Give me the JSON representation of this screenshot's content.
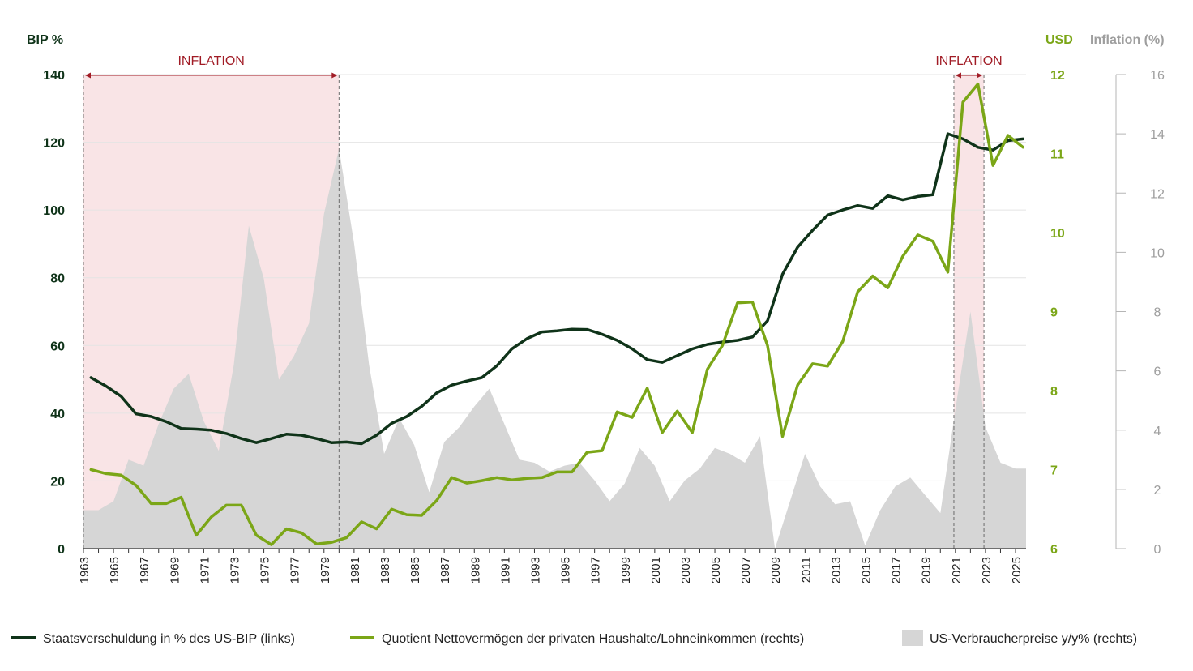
{
  "chart_data": {
    "type": "line",
    "title": "",
    "axes": {
      "left": {
        "label": "BIP %",
        "min": 0,
        "max": 140,
        "ticks": [
          0,
          20,
          40,
          60,
          80,
          100,
          120,
          140
        ],
        "color": "#0f3319"
      },
      "right_usd": {
        "label": "USD",
        "min": 6,
        "max": 12,
        "ticks": [
          6,
          7,
          8,
          9,
          10,
          11,
          12
        ],
        "color": "#7ba617"
      },
      "right_inflation": {
        "label": "Inflation (%)",
        "min": 0,
        "max": 16,
        "ticks": [
          0,
          2,
          4,
          6,
          8,
          10,
          12,
          14,
          16
        ],
        "color": "#9e9e9e"
      }
    },
    "x_tick_labels": [
      "1963",
      "1965",
      "1967",
      "1969",
      "1971",
      "1973",
      "1975",
      "1977",
      "1979",
      "1981",
      "1983",
      "1985",
      "1987",
      "1989",
      "1991",
      "1993",
      "1995",
      "1997",
      "1999",
      "2001",
      "2003",
      "2005",
      "2007",
      "2009",
      "2011",
      "2013",
      "2015",
      "2017",
      "2019",
      "2021",
      "2023",
      "2025"
    ],
    "x_range": [
      1963,
      2025.7
    ],
    "grid": true,
    "shaded_periods": [
      {
        "label": "INFLATION",
        "start": 1963,
        "end": 1980
      },
      {
        "label": "INFLATION",
        "start": 2020.9,
        "end": 2022.9
      }
    ],
    "series": [
      {
        "name": "Staatsverschuldung in % des US-BIP (links)",
        "axis": "left",
        "color": "#0f3319",
        "x": [
          1963.5,
          1964.5,
          1965.5,
          1966.5,
          1967.5,
          1968.5,
          1969.5,
          1970.5,
          1971.5,
          1972.5,
          1973.5,
          1974.5,
          1975.5,
          1976.5,
          1977.5,
          1978.5,
          1979.5,
          1980.5,
          1981.5,
          1982.5,
          1983.5,
          1984.5,
          1985.5,
          1986.5,
          1987.5,
          1988.5,
          1989.5,
          1990.5,
          1991.5,
          1992.5,
          1993.5,
          1994.5,
          1995.5,
          1996.5,
          1997.5,
          1998.5,
          1999.5,
          2000.5,
          2001.5,
          2002.5,
          2003.5,
          2004.5,
          2005.5,
          2006.5,
          2007.5,
          2008.5,
          2009.5,
          2010.5,
          2011.5,
          2012.5,
          2013.5,
          2014.5,
          2015.5,
          2016.5,
          2017.5,
          2018.5,
          2019.5,
          2020.5,
          2021.5,
          2022.5,
          2023.5,
          2024.5,
          2025.5
        ],
        "values": [
          50.5,
          48,
          45,
          39.8,
          39,
          37.5,
          35.5,
          35.3,
          35,
          34,
          32.5,
          31.3,
          32.5,
          33.8,
          33.5,
          32.5,
          31.3,
          31.5,
          31,
          33.5,
          37,
          39,
          42,
          46,
          48.3,
          49.5,
          50.5,
          54,
          59,
          62,
          64,
          64.3,
          64.8,
          64.7,
          63.3,
          61.5,
          59,
          55.8,
          55,
          57,
          59,
          60.3,
          61,
          61.5,
          62.5,
          67.3,
          81,
          89,
          94,
          98.5,
          100,
          101.3,
          100.5,
          104.2,
          103,
          104,
          104.5,
          122.5,
          121,
          118.5,
          117.7,
          120.5,
          121
        ]
      },
      {
        "name": "Quotient Nettovermögen der privaten Haushalte/Lohneinkommen (rechts)",
        "axis": "right_usd",
        "color": "#7ba617",
        "x": [
          1963.5,
          1964.5,
          1965.5,
          1966.5,
          1967.5,
          1968.5,
          1969.5,
          1970.5,
          1971.5,
          1972.5,
          1973.5,
          1974.5,
          1975.5,
          1976.5,
          1977.5,
          1978.5,
          1979.5,
          1980.5,
          1981.5,
          1982.5,
          1983.5,
          1984.5,
          1985.5,
          1986.5,
          1987.5,
          1988.5,
          1989.5,
          1990.5,
          1991.5,
          1992.5,
          1993.5,
          1994.5,
          1995.5,
          1996.5,
          1997.5,
          1998.5,
          1999.5,
          2000.5,
          2001.5,
          2002.5,
          2003.5,
          2004.5,
          2005.5,
          2006.5,
          2007.5,
          2008.5,
          2009.5,
          2010.5,
          2011.5,
          2012.5,
          2013.5,
          2014.5,
          2015.5,
          2016.5,
          2017.5,
          2018.5,
          2019.5,
          2020.5,
          2021.5,
          2022.5,
          2023.5,
          2024.5,
          2025.5
        ],
        "values": [
          7,
          6.95,
          6.93,
          6.8,
          6.57,
          6.57,
          6.65,
          6.17,
          6.4,
          6.55,
          6.55,
          6.17,
          6.05,
          6.25,
          6.2,
          6.06,
          6.08,
          6.14,
          6.34,
          6.25,
          6.5,
          6.43,
          6.42,
          6.61,
          6.9,
          6.83,
          6.86,
          6.9,
          6.87,
          6.89,
          6.9,
          6.97,
          6.97,
          7.22,
          7.24,
          7.73,
          7.66,
          8.03,
          7.47,
          7.74,
          7.47,
          8.27,
          8.57,
          9.11,
          9.12,
          8.57,
          7.42,
          8.07,
          8.34,
          8.31,
          8.62,
          9.25,
          9.45,
          9.3,
          9.7,
          9.97,
          9.89,
          9.5,
          11.65,
          11.88,
          10.85,
          11.23,
          11.08
        ]
      },
      {
        "name": "US-Verbraucherpreise y/y% (rechts)",
        "axis": "right_inflation",
        "type": "area",
        "color": "#d6d6d6",
        "x": [
          1963,
          1964,
          1965,
          1966,
          1967,
          1968,
          1969,
          1970,
          1971,
          1972,
          1973,
          1974,
          1975,
          1976,
          1977,
          1978,
          1979,
          1980,
          1981,
          1982,
          1983,
          1984,
          1985,
          1986,
          1987,
          1988,
          1989,
          1990,
          1991,
          1992,
          1993,
          1994,
          1995,
          1996,
          1997,
          1998,
          1999,
          2000,
          2001,
          2002,
          2003,
          2004,
          2005,
          2006,
          2007,
          2008,
          2009,
          2010,
          2011,
          2012,
          2013,
          2014,
          2015,
          2016,
          2017,
          2018,
          2019,
          2020,
          2021,
          2022,
          2023,
          2024,
          2025,
          2025.7
        ],
        "values": [
          1.3,
          1.3,
          1.6,
          3.0,
          2.8,
          4.2,
          5.4,
          5.9,
          4.3,
          3.3,
          6.2,
          10.9,
          9.1,
          5.7,
          6.5,
          7.6,
          11.3,
          13.5,
          10.3,
          6.2,
          3.2,
          4.4,
          3.5,
          1.9,
          3.6,
          4.1,
          4.8,
          5.4,
          4.2,
          3.0,
          2.9,
          2.6,
          2.8,
          2.9,
          2.3,
          1.6,
          2.2,
          3.4,
          2.8,
          1.6,
          2.3,
          2.7,
          3.4,
          3.2,
          2.9,
          3.8,
          0.0,
          1.6,
          3.2,
          2.1,
          1.5,
          1.6,
          0.1,
          1.3,
          2.1,
          2.4,
          1.8,
          1.2,
          4.7,
          8.0,
          4.1,
          2.9,
          2.7,
          2.7
        ]
      }
    ],
    "legend": {
      "position": "bottom",
      "items": [
        {
          "label": "Staatsverschuldung in % des US-BIP (links)",
          "type": "line",
          "color": "#0f3319"
        },
        {
          "label": "Quotient Nettovermögen der privaten Haushalte/Lohneinkommen (rechts)",
          "type": "line",
          "color": "#7ba617"
        },
        {
          "label": "US-Verbraucherpreise y/y% (rechts)",
          "type": "area",
          "color": "#d6d6d6"
        }
      ]
    },
    "colors": {
      "shade": "#f9e4e6",
      "annotation": "#a11c26",
      "grid": "#e4e4e4",
      "axis": "#333333"
    }
  }
}
